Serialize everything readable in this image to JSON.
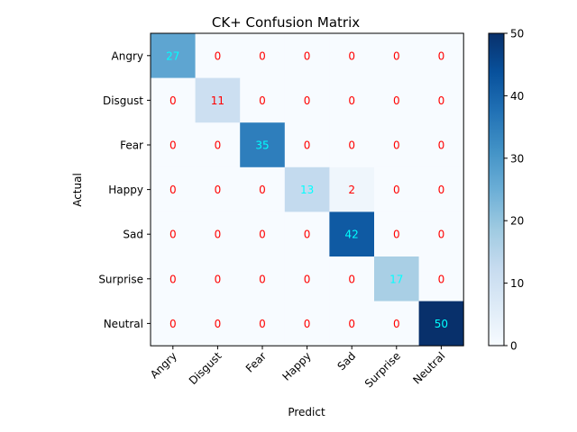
{
  "chart_data": {
    "type": "heatmap",
    "title": "CK+ Confusion Matrix",
    "xlabel": "Predict",
    "ylabel": "Actual",
    "x_categories": [
      "Angry",
      "Disgust",
      "Fear",
      "Happy",
      "Sad",
      "Surprise",
      "Neutral"
    ],
    "y_categories": [
      "Angry",
      "Disgust",
      "Fear",
      "Happy",
      "Sad",
      "Surprise",
      "Neutral"
    ],
    "values": [
      [
        27,
        0,
        0,
        0,
        0,
        0,
        0
      ],
      [
        0,
        11,
        0,
        0,
        0,
        0,
        0
      ],
      [
        0,
        0,
        35,
        0,
        0,
        0,
        0
      ],
      [
        0,
        0,
        0,
        13,
        2,
        0,
        0
      ],
      [
        0,
        0,
        0,
        0,
        42,
        0,
        0
      ],
      [
        0,
        0,
        0,
        0,
        0,
        17,
        0
      ],
      [
        0,
        0,
        0,
        0,
        0,
        0,
        50
      ]
    ],
    "colormap": "Blues",
    "vmin": 0,
    "vmax": 50,
    "colorbar_ticks": [
      0,
      10,
      20,
      30,
      40,
      50
    ],
    "label_colors": {
      "low": "#ff0000",
      "high": "#00ffff"
    }
  }
}
